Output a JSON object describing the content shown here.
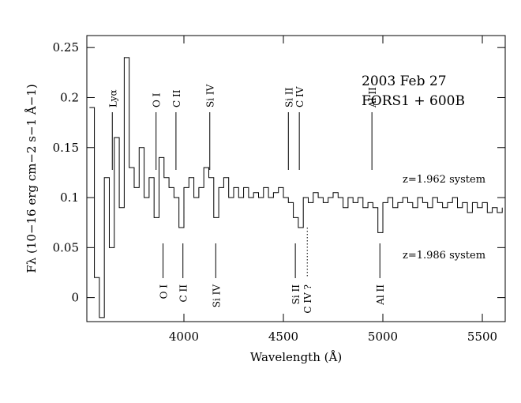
{
  "chart_data": {
    "type": "line",
    "x_label": "Wavelength (Å)",
    "y_label": "Fλ (10−16 erg cm−2 s−1 Å−1)",
    "notes": [
      "2003 Feb 27",
      "FORS1 + 600B",
      "z=1.962 system",
      "z=1.986 system"
    ],
    "xlim": [
      3512,
      5615
    ],
    "ylim": [
      -0.024,
      0.262
    ],
    "xticks": [
      4000,
      4500,
      5000,
      5500
    ],
    "yticks": [
      0,
      0.05,
      0.1,
      0.15,
      0.2,
      0.25
    ],
    "color": "#000000",
    "step": true,
    "x": [
      3525,
      3550,
      3575,
      3600,
      3625,
      3650,
      3675,
      3700,
      3725,
      3750,
      3775,
      3800,
      3825,
      3850,
      3875,
      3900,
      3925,
      3950,
      3975,
      4000,
      4025,
      4050,
      4075,
      4100,
      4125,
      4150,
      4175,
      4200,
      4225,
      4250,
      4275,
      4300,
      4325,
      4350,
      4375,
      4400,
      4425,
      4450,
      4475,
      4500,
      4525,
      4550,
      4575,
      4600,
      4625,
      4650,
      4675,
      4700,
      4725,
      4750,
      4775,
      4800,
      4825,
      4850,
      4875,
      4900,
      4925,
      4950,
      4975,
      5000,
      5025,
      5050,
      5075,
      5100,
      5125,
      5150,
      5175,
      5200,
      5225,
      5250,
      5275,
      5300,
      5325,
      5350,
      5375,
      5400,
      5425,
      5450,
      5475,
      5500,
      5525,
      5550,
      5575,
      5600
    ],
    "values": [
      0.19,
      0.02,
      -0.02,
      0.12,
      0.05,
      0.16,
      0.09,
      0.24,
      0.13,
      0.11,
      0.15,
      0.1,
      0.12,
      0.08,
      0.14,
      0.12,
      0.11,
      0.1,
      0.07,
      0.11,
      0.12,
      0.1,
      0.11,
      0.13,
      0.12,
      0.08,
      0.11,
      0.12,
      0.1,
      0.11,
      0.1,
      0.11,
      0.1,
      0.105,
      0.1,
      0.11,
      0.1,
      0.105,
      0.11,
      0.1,
      0.095,
      0.08,
      0.07,
      0.1,
      0.095,
      0.105,
      0.1,
      0.095,
      0.1,
      0.105,
      0.1,
      0.09,
      0.1,
      0.095,
      0.1,
      0.09,
      0.095,
      0.09,
      0.065,
      0.095,
      0.1,
      0.09,
      0.095,
      0.1,
      0.095,
      0.09,
      0.1,
      0.095,
      0.09,
      0.1,
      0.095,
      0.09,
      0.095,
      0.1,
      0.09,
      0.095,
      0.085,
      0.095,
      0.09,
      0.095,
      0.085,
      0.09,
      0.085,
      0.09
    ],
    "upper_lines": [
      {
        "text": "Lyα",
        "x": 3640
      },
      {
        "text": "O I",
        "x": 3860
      },
      {
        "text": "C II",
        "x": 3960
      },
      {
        "text": "Si IV",
        "x": 4130
      },
      {
        "text": "Si II",
        "x": 4525
      },
      {
        "text": "C IV",
        "x": 4580
      },
      {
        "text": "Al II",
        "x": 4945
      }
    ],
    "lower_lines": [
      {
        "text": "O I",
        "x": 3895
      },
      {
        "text": "C II",
        "x": 3995
      },
      {
        "text": "Si IV",
        "x": 4160
      },
      {
        "text": "Si II",
        "x": 4560
      },
      {
        "text": "C IV ?",
        "x": 4620,
        "dotted": true
      },
      {
        "text": "Al II",
        "x": 4985
      }
    ]
  }
}
